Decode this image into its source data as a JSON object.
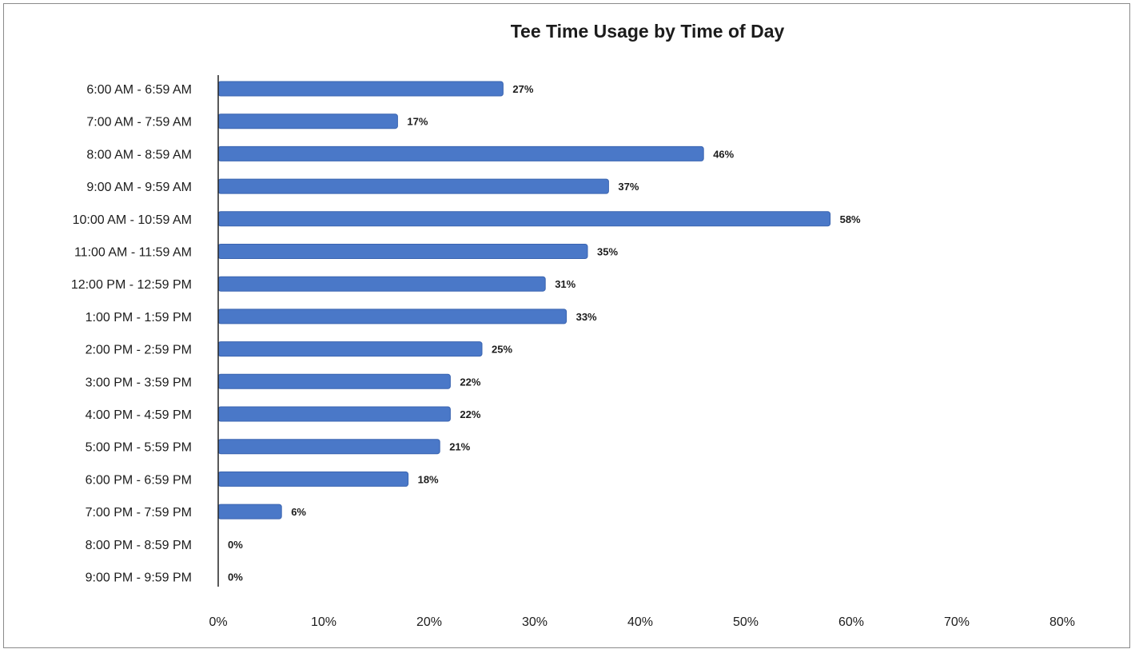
{
  "chart_data": {
    "type": "bar",
    "orientation": "horizontal",
    "title": "Tee Time Usage by Time of Day",
    "xlabel": "",
    "ylabel": "",
    "categories": [
      "6:00 AM - 6:59 AM",
      "7:00 AM - 7:59 AM",
      "8:00 AM - 8:59 AM",
      "9:00 AM - 9:59 AM",
      "10:00 AM - 10:59 AM",
      "11:00 AM - 11:59 AM",
      "12:00 PM - 12:59 PM",
      "1:00 PM - 1:59 PM",
      "2:00 PM - 2:59 PM",
      "3:00 PM - 3:59 PM",
      "4:00 PM - 4:59 PM",
      "5:00 PM - 5:59 PM",
      "6:00 PM - 6:59 PM",
      "7:00 PM - 7:59 PM",
      "8:00 PM - 8:59 PM",
      "9:00 PM - 9:59 PM"
    ],
    "values": [
      27,
      17,
      46,
      37,
      58,
      35,
      31,
      33,
      25,
      22,
      22,
      21,
      18,
      6,
      0,
      0
    ],
    "data_labels": [
      "27%",
      "17%",
      "46%",
      "37%",
      "58%",
      "35%",
      "31%",
      "33%",
      "25%",
      "22%",
      "22%",
      "21%",
      "18%",
      "6%",
      "0%",
      "0%"
    ],
    "x_ticks": [
      0,
      10,
      20,
      30,
      40,
      50,
      60,
      70,
      80
    ],
    "x_tick_labels": [
      "0%",
      "10%",
      "20%",
      "30%",
      "40%",
      "50%",
      "60%",
      "70%",
      "80%"
    ],
    "xlim": [
      0,
      80
    ],
    "grid": false,
    "legend": "none",
    "colors": {
      "bar": "#4a78c8",
      "bar_edge": "#3a64b0",
      "axis": "#222222",
      "text": "#1c1c1c"
    }
  }
}
